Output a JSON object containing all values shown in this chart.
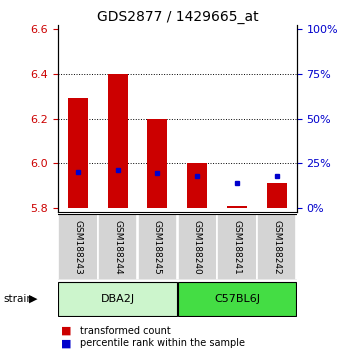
{
  "title": "GDS2877 / 1429665_at",
  "samples": [
    "GSM188243",
    "GSM188244",
    "GSM188245",
    "GSM188240",
    "GSM188241",
    "GSM188242"
  ],
  "groups": [
    {
      "name": "DBA2J",
      "indices": [
        0,
        1,
        2
      ],
      "color": "#ccf5cc"
    },
    {
      "name": "C57BL6J",
      "indices": [
        3,
        4,
        5
      ],
      "color": "#44dd44"
    }
  ],
  "ylim": [
    5.78,
    6.62
  ],
  "yticks": [
    5.8,
    6.0,
    6.2,
    6.4,
    6.6
  ],
  "y2ticks": [
    0,
    25,
    50,
    75,
    100
  ],
  "bar_base": 5.8,
  "red_tops": [
    6.29,
    6.4,
    6.2,
    6.0,
    5.81,
    5.91
  ],
  "blue_values": [
    5.963,
    5.968,
    5.957,
    5.945,
    5.91,
    5.945
  ],
  "bar_color": "#cc0000",
  "blue_color": "#0000cc",
  "bar_width": 0.5,
  "left_tick_color": "#cc0000",
  "right_tick_color": "#0000cc",
  "legend_red": "transformed count",
  "legend_blue": "percentile rank within the sample",
  "group_label_fontsize": 8,
  "sample_fontsize": 6.5,
  "title_fontsize": 10,
  "legend_fontsize": 7
}
